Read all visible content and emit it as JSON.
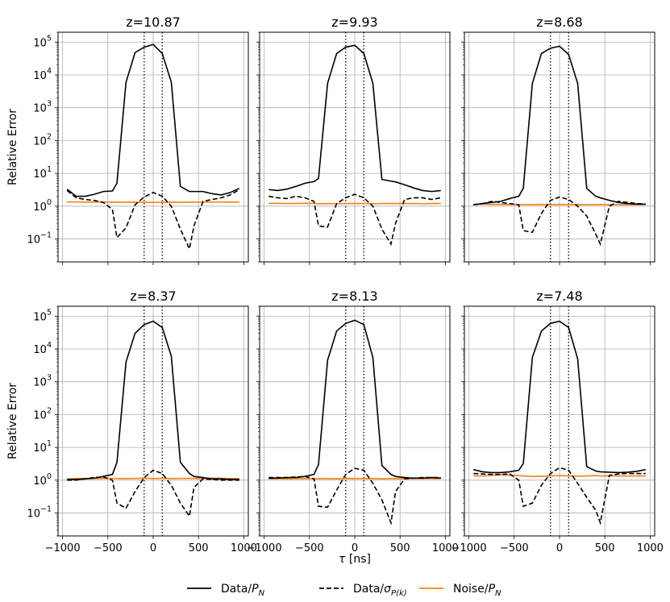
{
  "chart_data": {
    "type": "line",
    "x_label": "τ [ns]",
    "y_label": "Relative Error",
    "y_scale": "log",
    "x_range": [
      -1050,
      1050
    ],
    "y_range": [
      0.02,
      200000
    ],
    "x_ticks": [
      -1000,
      -500,
      0,
      500,
      1000
    ],
    "x_tick_labels": [
      "−1000",
      "−500",
      "0",
      "500",
      "1000"
    ],
    "y_ticks": [
      0.1,
      1,
      10,
      100,
      1000,
      10000,
      100000
    ],
    "y_tick_bases": [
      "10",
      "10",
      "10",
      "10",
      "10",
      "10",
      "10"
    ],
    "y_tick_exponents": [
      "−1",
      "0",
      "1",
      "2",
      "3",
      "4",
      "5"
    ],
    "vlines": [
      -100,
      100
    ],
    "legend": [
      {
        "name": "Data/P_N",
        "label": "Data/",
        "sym": "P",
        "sub": "N",
        "color": "#000000",
        "dash": "solid"
      },
      {
        "name": "Data/sigma_P(k)",
        "label": "Data/",
        "sym": "σ",
        "sub": "P(k)",
        "color": "#000000",
        "dash": "dashed"
      },
      {
        "name": "Noise/P_N",
        "label": "Noise/",
        "sym": "P",
        "sub": "N",
        "color": "#ff7f0e",
        "dash": "solid"
      }
    ],
    "x": [
      -950,
      -850,
      -750,
      -650,
      -550,
      -450,
      -400,
      -300,
      -200,
      -100,
      0,
      100,
      200,
      300,
      400,
      450,
      550,
      650,
      750,
      850,
      950
    ],
    "panels": [
      {
        "title": "z=10.87",
        "data_pn": [
          3.3,
          2.0,
          2.0,
          2.3,
          2.8,
          2.9,
          5.0,
          6000,
          48000,
          70000,
          85000,
          45000,
          6000,
          4.0,
          2.8,
          2.8,
          2.8,
          2.4,
          2.2,
          2.6,
          3.5
        ],
        "data_sigma": [
          3.0,
          1.8,
          1.6,
          1.5,
          1.3,
          0.8,
          0.11,
          0.22,
          1.1,
          1.9,
          2.6,
          2.0,
          1.0,
          0.2,
          0.05,
          0.25,
          1.4,
          1.6,
          1.8,
          2.2,
          3.2
        ],
        "noise": [
          1.35,
          1.35,
          1.33,
          1.35,
          1.34,
          1.33,
          1.33,
          1.32,
          1.33,
          1.32,
          1.3,
          1.32,
          1.33,
          1.32,
          1.33,
          1.34,
          1.33,
          1.34,
          1.34,
          1.33,
          1.34
        ]
      },
      {
        "title": "z=9.93",
        "data_pn": [
          3.2,
          3.0,
          3.3,
          4.0,
          5.0,
          5.6,
          7.0,
          5500,
          45000,
          70000,
          80000,
          45000,
          5500,
          6.5,
          5.8,
          5.5,
          4.5,
          3.6,
          3.0,
          2.8,
          3.0
        ],
        "data_sigma": [
          2.0,
          1.8,
          1.7,
          2.0,
          1.8,
          1.4,
          0.25,
          0.23,
          1.2,
          1.8,
          2.3,
          1.8,
          1.0,
          0.2,
          0.07,
          0.3,
          1.6,
          1.8,
          1.8,
          1.6,
          1.8
        ],
        "noise": [
          1.22,
          1.22,
          1.2,
          1.21,
          1.22,
          1.22,
          1.18,
          1.2,
          1.19,
          1.2,
          1.21,
          1.2,
          1.19,
          1.2,
          1.21,
          1.2,
          1.21,
          1.2,
          1.19,
          1.2,
          1.2
        ]
      },
      {
        "title": "z=8.68",
        "data_pn": [
          1.1,
          1.2,
          1.3,
          1.4,
          1.7,
          2.0,
          3.5,
          5500,
          45000,
          65000,
          75000,
          42000,
          5500,
          3.5,
          2.0,
          1.8,
          1.5,
          1.3,
          1.2,
          1.15,
          1.15
        ],
        "data_sigma": [
          1.1,
          1.2,
          1.4,
          1.3,
          1.2,
          1.1,
          0.18,
          0.16,
          0.6,
          1.5,
          1.9,
          1.6,
          1.0,
          0.5,
          0.14,
          0.07,
          1.0,
          1.4,
          1.3,
          1.2,
          1.15
        ],
        "noise": [
          1.14,
          1.15,
          1.13,
          1.13,
          1.12,
          1.13,
          1.12,
          1.12,
          1.13,
          1.12,
          1.13,
          1.12,
          1.12,
          1.11,
          1.12,
          1.12,
          1.11,
          1.11,
          1.12,
          1.11,
          1.12
        ]
      },
      {
        "title": "z=8.37",
        "data_pn": [
          1.05,
          1.05,
          1.1,
          1.15,
          1.3,
          1.5,
          3.5,
          4000,
          30000,
          55000,
          70000,
          45000,
          6000,
          3.5,
          1.6,
          1.3,
          1.2,
          1.1,
          1.1,
          1.05,
          1.05
        ],
        "data_sigma": [
          1.0,
          1.0,
          1.1,
          1.2,
          1.25,
          1.0,
          0.2,
          0.14,
          0.45,
          1.2,
          2.0,
          1.6,
          0.7,
          0.2,
          0.08,
          0.6,
          1.1,
          1.05,
          1.0,
          1.0,
          1.0
        ],
        "noise": [
          1.1,
          1.12,
          1.13,
          1.12,
          1.13,
          1.14,
          1.12,
          1.12,
          1.13,
          1.15,
          1.12,
          1.14,
          1.12,
          1.13,
          1.14,
          1.13,
          1.12,
          1.15,
          1.14,
          1.12,
          1.12
        ]
      },
      {
        "title": "z=8.13",
        "data_pn": [
          1.15,
          1.15,
          1.2,
          1.2,
          1.3,
          1.5,
          3.0,
          4500,
          35000,
          60000,
          75000,
          55000,
          5500,
          2.8,
          1.5,
          1.3,
          1.2,
          1.15,
          1.15,
          1.2,
          1.15
        ],
        "data_sigma": [
          1.2,
          1.2,
          1.2,
          1.25,
          1.3,
          1.1,
          0.16,
          0.15,
          0.5,
          1.5,
          2.3,
          2.0,
          0.8,
          0.25,
          0.05,
          0.45,
          1.1,
          1.15,
          1.2,
          1.2,
          1.2
        ],
        "noise": [
          1.1,
          1.12,
          1.1,
          1.11,
          1.12,
          1.1,
          1.11,
          1.12,
          1.1,
          1.12,
          1.13,
          1.11,
          1.12,
          1.1,
          1.11,
          1.12,
          1.1,
          1.12,
          1.13,
          1.12,
          1.12
        ]
      },
      {
        "title": "z=7.48",
        "data_pn": [
          2.1,
          1.8,
          1.7,
          1.7,
          1.8,
          2.0,
          3.2,
          5500,
          35000,
          60000,
          70000,
          45000,
          5000,
          2.6,
          1.9,
          1.8,
          1.75,
          1.7,
          1.75,
          1.85,
          2.1
        ],
        "data_sigma": [
          1.6,
          1.55,
          1.5,
          1.5,
          1.55,
          1.0,
          0.16,
          0.2,
          0.7,
          1.6,
          2.4,
          2.0,
          0.8,
          0.3,
          0.12,
          0.05,
          1.4,
          1.55,
          1.6,
          1.6,
          1.6
        ],
        "noise": [
          1.35,
          1.35,
          1.4,
          1.45,
          1.4,
          1.38,
          1.35,
          1.3,
          1.32,
          1.35,
          1.38,
          1.35,
          1.32,
          1.35,
          1.38,
          1.35,
          1.36,
          1.35,
          1.34,
          1.35,
          1.35
        ]
      }
    ]
  }
}
